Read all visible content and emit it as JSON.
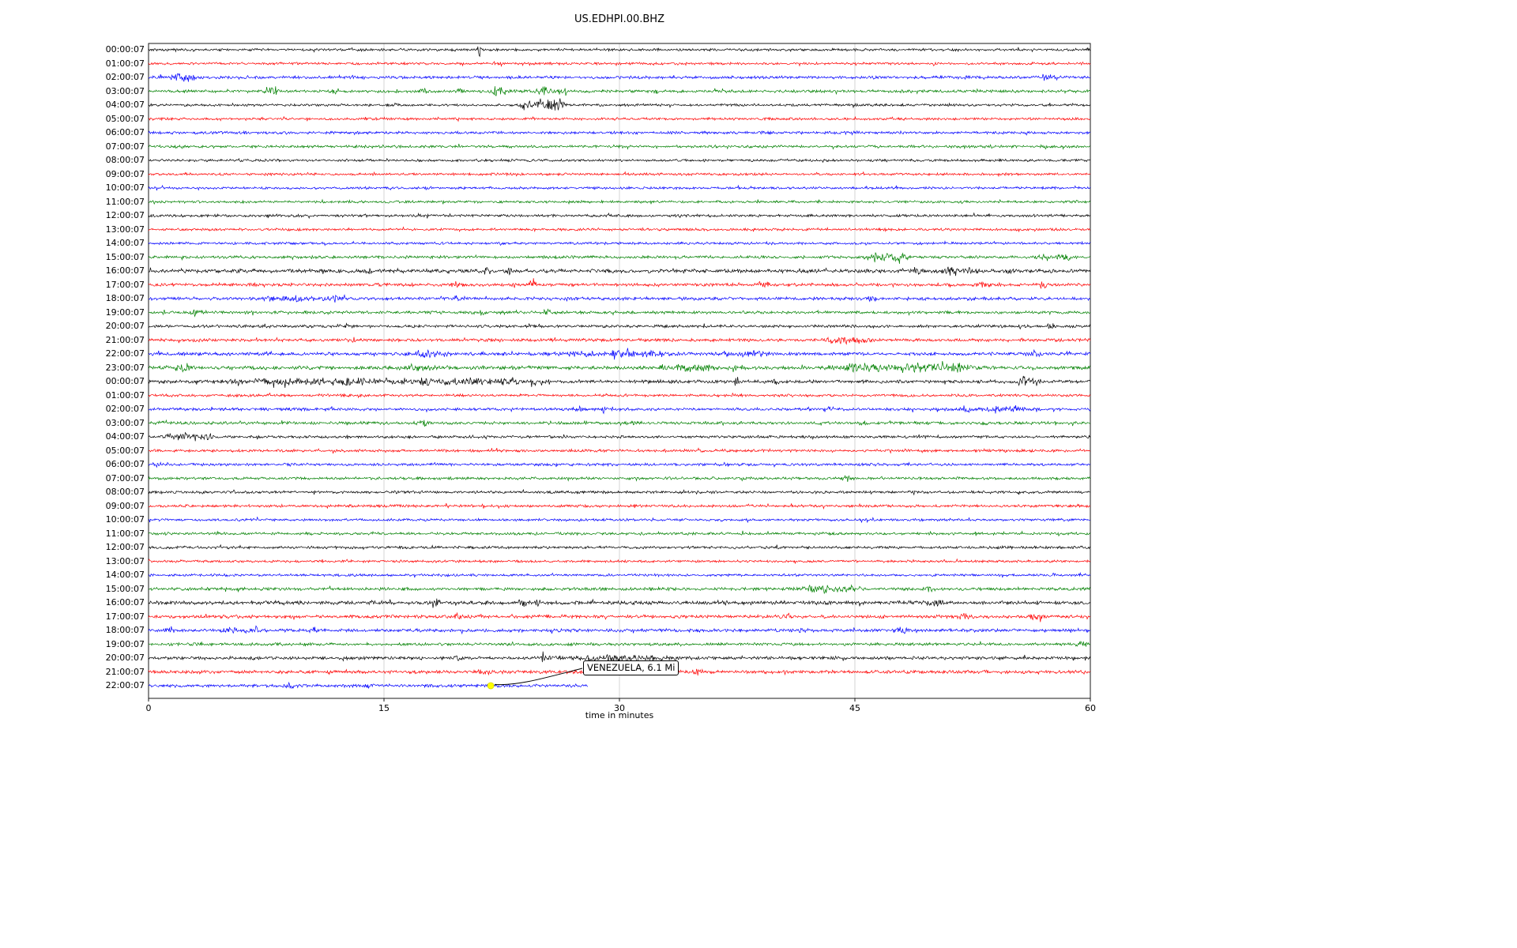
{
  "title": "US.EDHPI.00.BHZ",
  "xlabel": "time in minutes",
  "x_ticks": {
    "values": [
      0,
      15,
      30,
      45,
      60
    ],
    "labels": [
      "0",
      "15",
      "30",
      "45",
      "60"
    ]
  },
  "annotation": {
    "label": "VENEZUELA, 6.1 Mi",
    "row_index": 46,
    "minute": 21.8,
    "marker": "yellow-dot",
    "marker_color": "#ffff00"
  },
  "chart_data": {
    "type": "line",
    "subtype": "helicorder-dayplot",
    "station": "US.EDHPI.00.BHZ",
    "title": "US.EDHPI.00.BHZ",
    "xlabel": "time in minutes",
    "x_range_minutes": [
      0,
      60
    ],
    "minutes_per_row": 60,
    "grid_minutes": [
      15,
      30,
      45
    ],
    "color_cycle": [
      "#000000",
      "#ff0000",
      "#0000ff",
      "#008000"
    ],
    "event": {
      "label": "VENEZUELA, 6.1 Mi",
      "row_label": "22:00:07",
      "minute": 21.8
    },
    "rows": [
      {
        "label": "00:00:07",
        "color": "#000000",
        "amp": 1.2,
        "bursts": [
          [
            21.1,
            5,
            0.15
          ]
        ]
      },
      {
        "label": "01:00:07",
        "color": "#ff0000",
        "amp": 1.2,
        "bursts": [
          [
            22.5,
            2,
            0.1
          ]
        ]
      },
      {
        "label": "02:00:07",
        "color": "#0000ff",
        "amp": 1.4,
        "bursts": [
          [
            2.0,
            3.5,
            0.5
          ],
          [
            2.7,
            2.5,
            0.3
          ],
          [
            52.3,
            1.5,
            0.3
          ],
          [
            57.3,
            2.2,
            0.6
          ]
        ]
      },
      {
        "label": "03:00:07",
        "color": "#008000",
        "amp": 1.4,
        "bursts": [
          [
            8.0,
            3.5,
            0.4
          ],
          [
            11.9,
            3,
            0.2
          ],
          [
            17.6,
            3,
            0.3
          ],
          [
            19.8,
            2.5,
            0.2
          ],
          [
            22.3,
            3.2,
            0.4
          ],
          [
            25.2,
            3,
            0.5
          ],
          [
            26.3,
            2.5,
            0.3
          ],
          [
            32.3,
            2.5,
            0.15
          ]
        ]
      },
      {
        "label": "04:00:07",
        "color": "#000000",
        "amp": 1.2,
        "bursts": [
          [
            24.0,
            5,
            0.3
          ],
          [
            24.8,
            6,
            0.4
          ],
          [
            25.6,
            5.5,
            0.4
          ],
          [
            26.2,
            4,
            0.3
          ]
        ]
      },
      {
        "label": "05:00:07",
        "color": "#ff0000",
        "amp": 1.2,
        "bursts": []
      },
      {
        "label": "06:00:07",
        "color": "#0000ff",
        "amp": 1.3,
        "bursts": []
      },
      {
        "label": "07:00:07",
        "color": "#008000",
        "amp": 1.3,
        "bursts": []
      },
      {
        "label": "08:00:07",
        "color": "#000000",
        "amp": 1.2,
        "bursts": []
      },
      {
        "label": "09:00:07",
        "color": "#ff0000",
        "amp": 1.2,
        "bursts": []
      },
      {
        "label": "10:00:07",
        "color": "#0000ff",
        "amp": 1.2,
        "bursts": []
      },
      {
        "label": "11:00:07",
        "color": "#008000",
        "amp": 1.2,
        "bursts": []
      },
      {
        "label": "12:00:07",
        "color": "#000000",
        "amp": 1.3,
        "bursts": []
      },
      {
        "label": "13:00:07",
        "color": "#ff0000",
        "amp": 1.2,
        "bursts": []
      },
      {
        "label": "14:00:07",
        "color": "#0000ff",
        "amp": 1.2,
        "bursts": []
      },
      {
        "label": "15:00:07",
        "color": "#008000",
        "amp": 1.4,
        "bursts": [
          [
            46.2,
            3,
            0.5
          ],
          [
            47.0,
            3.5,
            0.6
          ],
          [
            48.0,
            2.5,
            0.5
          ],
          [
            57.5,
            2.5,
            0.8
          ],
          [
            58.5,
            2.5,
            0.4
          ]
        ]
      },
      {
        "label": "16:00:07",
        "color": "#000000",
        "amp": 1.8,
        "bursts": [
          [
            11.0,
            3,
            0.15
          ],
          [
            14.0,
            2.5,
            0.2
          ],
          [
            21.5,
            3,
            0.15
          ],
          [
            23.0,
            2.5,
            0.2
          ],
          [
            41.5,
            3,
            0.2
          ],
          [
            49.0,
            2.5,
            0.3
          ],
          [
            51.0,
            3,
            0.6
          ],
          [
            52.5,
            2.5,
            0.4
          ],
          [
            55.0,
            2.5,
            0.3
          ]
        ]
      },
      {
        "label": "17:00:07",
        "color": "#ff0000",
        "amp": 1.5,
        "bursts": [
          [
            19.5,
            2.5,
            0.3
          ],
          [
            24.4,
            2.8,
            0.3
          ],
          [
            39.2,
            2.5,
            0.4
          ],
          [
            53.0,
            2,
            0.4
          ],
          [
            57.0,
            2,
            0.4
          ]
        ]
      },
      {
        "label": "18:00:07",
        "color": "#0000ff",
        "amp": 1.5,
        "bursts": [
          [
            9.0,
            2,
            1.5
          ],
          [
            12.0,
            2,
            1.0
          ],
          [
            19.7,
            3,
            0.3
          ],
          [
            46.0,
            3,
            0.3
          ]
        ]
      },
      {
        "label": "19:00:07",
        "color": "#008000",
        "amp": 1.4,
        "bursts": [
          [
            3.0,
            2.5,
            0.3
          ],
          [
            21.0,
            2.8,
            0.3
          ],
          [
            22.8,
            2,
            0.2
          ],
          [
            25.3,
            2.5,
            0.3
          ]
        ]
      },
      {
        "label": "20:00:07",
        "color": "#000000",
        "amp": 1.4,
        "bursts": [
          [
            12.4,
            3,
            0.3
          ],
          [
            57.5,
            2,
            0.2
          ]
        ]
      },
      {
        "label": "21:00:07",
        "color": "#ff0000",
        "amp": 1.5,
        "bursts": [
          [
            13.0,
            2.5,
            0.2
          ],
          [
            44.0,
            2.5,
            1.0
          ],
          [
            45.5,
            2,
            0.6
          ]
        ]
      },
      {
        "label": "22:00:07",
        "color": "#0000ff",
        "amp": 1.6,
        "bursts": [
          [
            17.8,
            2.5,
            1.0
          ],
          [
            27.5,
            2,
            1.0
          ],
          [
            29.7,
            3,
            0.3
          ],
          [
            31.5,
            2.5,
            1.5
          ],
          [
            38.5,
            2.5,
            1.0
          ],
          [
            56.3,
            2.8,
            0.4
          ]
        ]
      },
      {
        "label": "23:00:07",
        "color": "#008000",
        "amp": 1.8,
        "bursts": [
          [
            2.0,
            2,
            0.5
          ],
          [
            17.5,
            2.5,
            1.0
          ],
          [
            34.5,
            2.2,
            2.0
          ],
          [
            45.0,
            2.5,
            1.5
          ],
          [
            48.5,
            3,
            2.0
          ],
          [
            51.5,
            2.5,
            1.0
          ]
        ]
      },
      {
        "label": "00:00:07",
        "color": "#000000",
        "amp": 1.6,
        "bursts": [
          [
            8.0,
            2,
            2.5
          ],
          [
            13.0,
            2.5,
            2.5
          ],
          [
            18.0,
            2.5,
            2.0
          ],
          [
            22.0,
            2.5,
            1.5
          ],
          [
            24.8,
            2.5,
            0.5
          ],
          [
            37.5,
            3.5,
            0.2
          ],
          [
            40.0,
            2.5,
            0.2
          ],
          [
            55.7,
            4,
            0.3
          ],
          [
            56.5,
            3.5,
            0.3
          ]
        ]
      },
      {
        "label": "01:00:07",
        "color": "#ff0000",
        "amp": 1.3,
        "bursts": []
      },
      {
        "label": "02:00:07",
        "color": "#0000ff",
        "amp": 1.4,
        "bursts": [
          [
            27.3,
            2.5,
            0.3
          ],
          [
            29.0,
            2.5,
            0.2
          ],
          [
            43.3,
            2.5,
            0.3
          ],
          [
            52.2,
            2.8,
            0.4
          ],
          [
            54.5,
            2,
            1.5
          ]
        ]
      },
      {
        "label": "03:00:07",
        "color": "#008000",
        "amp": 1.4,
        "bursts": [
          [
            1.0,
            2,
            0.3
          ],
          [
            17.4,
            3.5,
            0.3
          ],
          [
            31.0,
            2,
            0.3
          ],
          [
            45.5,
            2.2,
            0.3
          ],
          [
            53.3,
            2.2,
            0.3
          ]
        ]
      },
      {
        "label": "04:00:07",
        "color": "#000000",
        "amp": 1.3,
        "bursts": [
          [
            1.2,
            3,
            0.3
          ],
          [
            2.2,
            4,
            0.4
          ],
          [
            3.0,
            3.5,
            0.4
          ],
          [
            3.8,
            3,
            0.3
          ]
        ]
      },
      {
        "label": "05:00:07",
        "color": "#ff0000",
        "amp": 1.3,
        "bursts": []
      },
      {
        "label": "06:00:07",
        "color": "#0000ff",
        "amp": 1.3,
        "bursts": [
          [
            0.4,
            2,
            0.2
          ]
        ]
      },
      {
        "label": "07:00:07",
        "color": "#008000",
        "amp": 1.3,
        "bursts": [
          [
            44.5,
            1.8,
            0.3
          ]
        ]
      },
      {
        "label": "08:00:07",
        "color": "#000000",
        "amp": 1.3,
        "bursts": []
      },
      {
        "label": "09:00:07",
        "color": "#ff0000",
        "amp": 1.3,
        "bursts": []
      },
      {
        "label": "10:00:07",
        "color": "#0000ff",
        "amp": 1.2,
        "bursts": [
          [
            46.0,
            1.5,
            0.3
          ]
        ]
      },
      {
        "label": "11:00:07",
        "color": "#008000",
        "amp": 1.3,
        "bursts": []
      },
      {
        "label": "12:00:07",
        "color": "#000000",
        "amp": 1.3,
        "bursts": []
      },
      {
        "label": "13:00:07",
        "color": "#ff0000",
        "amp": 1.2,
        "bursts": []
      },
      {
        "label": "14:00:07",
        "color": "#0000ff",
        "amp": 1.2,
        "bursts": [
          [
            57.7,
            1.5,
            0.2
          ]
        ]
      },
      {
        "label": "15:00:07",
        "color": "#008000",
        "amp": 1.5,
        "bursts": [
          [
            42.3,
            3.5,
            0.5
          ],
          [
            43.2,
            3,
            0.5
          ],
          [
            44.5,
            2.5,
            0.8
          ],
          [
            49.7,
            2.2,
            0.3
          ]
        ]
      },
      {
        "label": "16:00:07",
        "color": "#000000",
        "amp": 1.8,
        "bursts": [
          [
            18.3,
            3,
            0.2
          ],
          [
            23.8,
            3.2,
            0.25
          ],
          [
            24.8,
            2.8,
            0.2
          ],
          [
            36.5,
            2,
            0.3
          ],
          [
            50.0,
            2,
            0.5
          ]
        ]
      },
      {
        "label": "17:00:07",
        "color": "#ff0000",
        "amp": 1.6,
        "bursts": [
          [
            19.8,
            2.8,
            0.3
          ],
          [
            40.7,
            2.6,
            0.3
          ],
          [
            52.0,
            2.5,
            0.4
          ],
          [
            56.5,
            2.2,
            0.4
          ]
        ]
      },
      {
        "label": "18:00:07",
        "color": "#0000ff",
        "amp": 1.5,
        "bursts": [
          [
            1.3,
            2.5,
            0.3
          ],
          [
            5.2,
            2.8,
            0.4
          ],
          [
            6.8,
            3,
            0.3
          ],
          [
            10.4,
            2.5,
            0.3
          ],
          [
            41.5,
            2.5,
            0.3
          ],
          [
            48.0,
            2.5,
            0.3
          ]
        ]
      },
      {
        "label": "19:00:07",
        "color": "#008000",
        "amp": 1.4,
        "bursts": [
          [
            59.4,
            2.8,
            0.3
          ]
        ]
      },
      {
        "label": "20:00:07",
        "color": "#000000",
        "amp": 1.5,
        "bursts": [
          [
            19.7,
            2.8,
            0.2
          ],
          [
            25.2,
            3,
            0.3
          ],
          [
            30.0,
            1.8,
            3.0
          ]
        ]
      },
      {
        "label": "21:00:07",
        "color": "#ff0000",
        "amp": 1.6,
        "bursts": [
          [
            21.5,
            1.5,
            0.5
          ],
          [
            35.0,
            2.2,
            0.3
          ]
        ]
      },
      {
        "label": "22:00:07",
        "color": "#0000ff",
        "amp": 1.5,
        "end_minute": 28,
        "bursts": [
          [
            9.0,
            1.8,
            0.3
          ],
          [
            14.0,
            2,
            0.2
          ]
        ]
      }
    ]
  }
}
